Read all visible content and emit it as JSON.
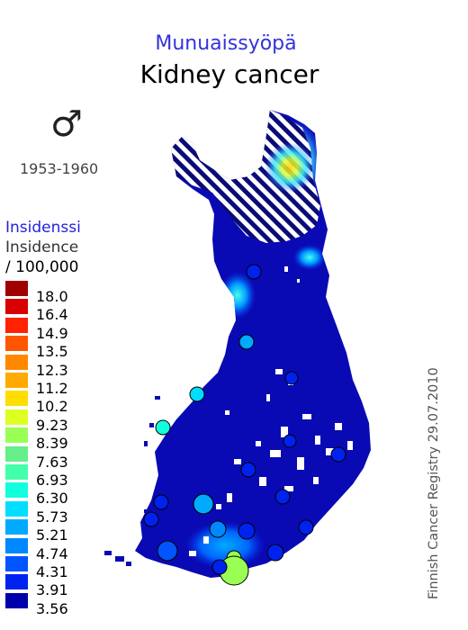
{
  "title_fi": "Munuaissyöpä",
  "title_en": "Kidney cancer",
  "sex_symbol": "♂",
  "period": "1953-1960",
  "legend": {
    "title_fi": "Insidenssi",
    "title_en": "Insidence",
    "unit": "/ 100,000",
    "bins": [
      {
        "color": "#a00000",
        "label": "18.0"
      },
      {
        "color": "#d80000",
        "label": "16.4"
      },
      {
        "color": "#ff2200",
        "label": "14.9"
      },
      {
        "color": "#ff5500",
        "label": "13.5"
      },
      {
        "color": "#ff8800",
        "label": "12.3"
      },
      {
        "color": "#ffaa00",
        "label": "11.2"
      },
      {
        "color": "#ffdd00",
        "label": "10.2"
      },
      {
        "color": "#ddff22",
        "label": "9.23"
      },
      {
        "color": "#99ff55",
        "label": "8.39"
      },
      {
        "color": "#66ee88",
        "label": "7.63"
      },
      {
        "color": "#44ffaa",
        "label": "6.93"
      },
      {
        "color": "#11ffdd",
        "label": "6.30"
      },
      {
        "color": "#00ddff",
        "label": "5.73"
      },
      {
        "color": "#00aaff",
        "label": "5.21"
      },
      {
        "color": "#0088ff",
        "label": "4.74"
      },
      {
        "color": "#0055ff",
        "label": "4.31"
      },
      {
        "color": "#0022ee",
        "label": "3.91"
      },
      {
        "color": "#0000aa",
        "label": "3.56"
      }
    ]
  },
  "credit": "Finnish Cancer Registry 29.07.2010",
  "colors": {
    "base": "#0a0ab4",
    "hatch": "#0a0a78",
    "outline": "#000000"
  }
}
